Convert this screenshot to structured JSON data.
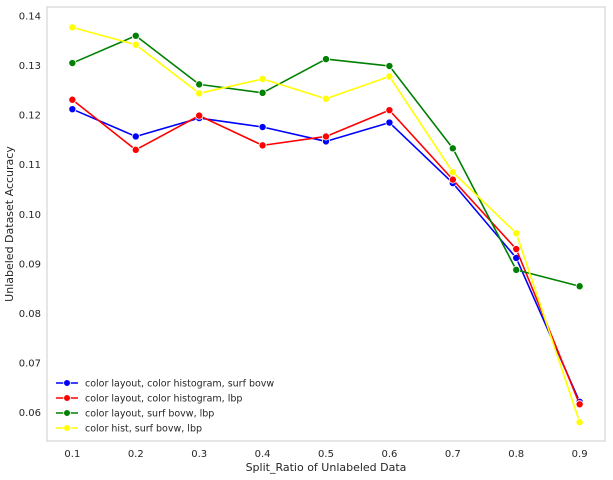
{
  "chart_data": {
    "type": "line",
    "title": "",
    "xlabel": "Split_Ratio of Unlabeled Data",
    "ylabel": "Unlabeled Dataset Accuracy",
    "x": [
      0.1,
      0.2,
      0.3,
      0.4,
      0.5,
      0.6,
      0.7,
      0.8,
      0.9
    ],
    "xtick_labels": [
      "0.1",
      "0.2",
      "0.3",
      "0.4",
      "0.5",
      "0.6",
      "0.7",
      "0.8",
      "0.9"
    ],
    "xlim": [
      0.06,
      0.94
    ],
    "ylim": [
      0.0543,
      0.1418
    ],
    "yticks": [
      0.06,
      0.07,
      0.08,
      0.09,
      0.1,
      0.11,
      0.12,
      0.13,
      0.14
    ],
    "ytick_labels": [
      "0.06",
      "0.07",
      "0.08",
      "0.09",
      "0.10",
      "0.11",
      "0.12",
      "0.13",
      "0.14"
    ],
    "grid": false,
    "legend_position": "lower-left",
    "series": [
      {
        "name": "color layout, color histogram, surf bovw",
        "color": "#0000ff",
        "values": [
          0.1212,
          0.1157,
          0.1194,
          0.1176,
          0.1147,
          0.1185,
          0.1063,
          0.0912,
          0.0622
        ]
      },
      {
        "name": "color layout, color histogram, lbp",
        "color": "#ff0000",
        "values": [
          0.1231,
          0.113,
          0.1199,
          0.1139,
          0.1157,
          0.121,
          0.107,
          0.093,
          0.0617
        ]
      },
      {
        "name": "color layout, surf bovw, lbp",
        "color": "#008000",
        "values": [
          0.1305,
          0.136,
          0.1262,
          0.1245,
          0.1313,
          0.1299,
          0.1133,
          0.0888,
          0.0855
        ]
      },
      {
        "name": "color hist, surf bovw, lbp",
        "color": "#ffff00",
        "values": [
          0.1377,
          0.1342,
          0.1244,
          0.1273,
          0.1233,
          0.1278,
          0.1085,
          0.0962,
          0.0581
        ]
      }
    ]
  }
}
